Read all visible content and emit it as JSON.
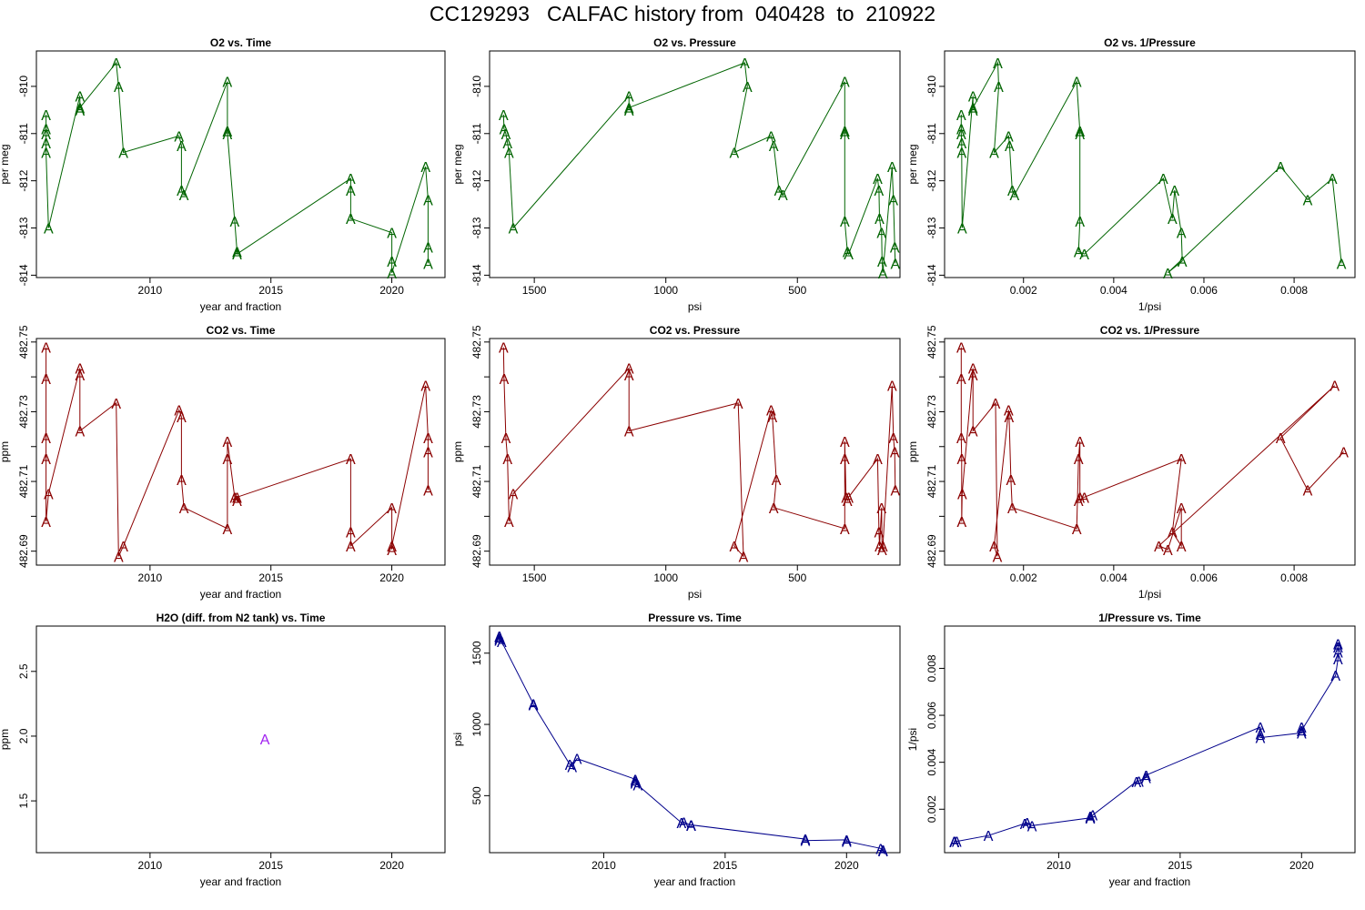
{
  "page_title": "CC129293   CALFAC history from  040428  to  210922",
  "colors": {
    "o2": "#006400",
    "co2": "#8b0000",
    "h2o": "#a020f0",
    "pressure": "#00008b",
    "frame": "#000000"
  },
  "chart_data": [
    {
      "type": "scatter",
      "title": "O2 vs. Time",
      "xlabel": "year and fraction",
      "ylabel": "per meg",
      "xlim": [
        2005.3,
        2022.2
      ],
      "ylim": [
        -814.05,
        -809.25
      ],
      "xticks": [
        "2010",
        "2015",
        "2020"
      ],
      "yticks": [
        "-814",
        "-813",
        "-812",
        "-811",
        "-810"
      ],
      "reverse_x": false,
      "color_key": "o2",
      "marker": "A",
      "connect": true,
      "x": [
        2005.7,
        2005.7,
        2005.7,
        2005.7,
        2005.7,
        2005.8,
        2007.1,
        2007.1,
        2007.1,
        2008.6,
        2008.7,
        2008.9,
        2011.2,
        2011.3,
        2011.3,
        2011.4,
        2013.2,
        2013.2,
        2013.2,
        2013.5,
        2013.6,
        2013.6,
        2018.3,
        2018.3,
        2018.3,
        2020.0,
        2020.0,
        2020.0,
        2021.4,
        2021.5,
        2021.5,
        2021.5
      ],
      "y": [
        -810.6,
        -810.9,
        -811.0,
        -811.2,
        -811.4,
        -813.0,
        -810.2,
        -810.5,
        -810.45,
        -809.5,
        -810.0,
        -811.4,
        -811.05,
        -811.25,
        -812.2,
        -812.3,
        -809.9,
        -810.95,
        -811.0,
        -812.85,
        -813.5,
        -813.55,
        -811.95,
        -812.2,
        -812.8,
        -813.1,
        -813.7,
        -813.95,
        -811.7,
        -812.4,
        -813.4,
        -813.75
      ]
    },
    {
      "type": "scatter",
      "title": "O2 vs. Pressure",
      "xlabel": "psi",
      "ylabel": "per meg",
      "xlim": [
        1670,
        110
      ],
      "ylim": [
        -814.05,
        -809.25
      ],
      "xticks": [
        "1500",
        "1000",
        "500"
      ],
      "yticks": [
        "-814",
        "-813",
        "-812",
        "-811",
        "-810"
      ],
      "reverse_x": true,
      "color_key": "o2",
      "marker": "A",
      "connect": true,
      "x": [
        1617,
        1615,
        1608,
        1602,
        1596,
        1580,
        1140,
        1140,
        1140,
        700,
        690,
        740,
        600,
        590,
        570,
        555,
        320,
        320,
        320,
        320,
        310,
        305,
        195,
        190,
        188,
        180,
        178,
        175,
        140,
        135,
        130,
        128
      ],
      "y": [
        -810.6,
        -810.9,
        -811.0,
        -811.2,
        -811.4,
        -813.0,
        -810.2,
        -810.5,
        -810.45,
        -809.5,
        -810.0,
        -811.4,
        -811.05,
        -811.25,
        -812.2,
        -812.3,
        -809.9,
        -810.95,
        -811.0,
        -812.85,
        -813.5,
        -813.55,
        -811.95,
        -812.2,
        -812.8,
        -813.1,
        -813.7,
        -813.95,
        -811.7,
        -812.4,
        -813.4,
        -813.75
      ]
    },
    {
      "type": "scatter",
      "title": "O2 vs. 1/Pressure",
      "xlabel": "1/psi",
      "ylabel": "per meg",
      "xlim": [
        0.00025,
        0.00935
      ],
      "ylim": [
        -814.05,
        -809.25
      ],
      "xticks": [
        "0.002",
        "0.004",
        "0.006",
        "0.008"
      ],
      "yticks": [
        "-814",
        "-813",
        "-812",
        "-811",
        "-810"
      ],
      "reverse_x": false,
      "color_key": "o2",
      "marker": "A",
      "connect": true,
      "x": [
        0.00062,
        0.00062,
        0.00062,
        0.00063,
        0.00063,
        0.00064,
        0.00088,
        0.00088,
        0.00088,
        0.00143,
        0.00145,
        0.00135,
        0.00167,
        0.00169,
        0.00175,
        0.0018,
        0.00318,
        0.00325,
        0.00325,
        0.00325,
        0.00322,
        0.00335,
        0.0051,
        0.0053,
        0.00535,
        0.0055,
        0.00552,
        0.0052,
        0.0077,
        0.0083,
        0.00885,
        0.00905
      ],
      "y": [
        -810.6,
        -810.9,
        -811.0,
        -811.2,
        -811.4,
        -813.0,
        -810.2,
        -810.5,
        -810.45,
        -809.5,
        -810.0,
        -811.4,
        -811.05,
        -811.25,
        -812.2,
        -812.3,
        -809.9,
        -810.95,
        -811.0,
        -812.85,
        -813.5,
        -813.55,
        -811.95,
        -812.8,
        -812.2,
        -813.1,
        -813.7,
        -813.95,
        -811.7,
        -812.4,
        -811.95,
        -813.75
      ]
    },
    {
      "type": "scatter",
      "title": "CO2 vs. Time",
      "xlabel": "year and fraction",
      "ylabel": "ppm",
      "xlim": [
        2005.3,
        2022.2
      ],
      "ylim": [
        482.686,
        482.751
      ],
      "xticks": [
        "2010",
        "2015",
        "2020"
      ],
      "yticks": [
        "482.69",
        "482.71",
        "482.73",
        "482.75"
      ],
      "minor_yticks": [
        482.7,
        482.72,
        482.74
      ],
      "reverse_x": false,
      "color_key": "co2",
      "marker": "A",
      "connect": true,
      "x": [
        2005.7,
        2005.7,
        2005.7,
        2005.7,
        2005.7,
        2005.8,
        2007.1,
        2007.1,
        2007.1,
        2008.6,
        2008.7,
        2008.9,
        2011.2,
        2011.3,
        2011.3,
        2011.4,
        2013.2,
        2013.2,
        2013.2,
        2013.5,
        2013.6,
        2013.6,
        2018.3,
        2018.3,
        2018.3,
        2020.0,
        2020.0,
        2020.0,
        2021.4,
        2021.5,
        2021.5,
        2021.5
      ],
      "y": [
        482.7485,
        482.7395,
        482.7225,
        482.7165,
        482.6985,
        482.7065,
        482.7425,
        482.7405,
        482.7245,
        482.7325,
        482.6885,
        482.6915,
        482.7305,
        482.7285,
        482.7105,
        482.7025,
        482.6965,
        482.7165,
        482.7215,
        482.7055,
        482.7045,
        482.7055,
        482.7165,
        482.6955,
        482.6915,
        482.7025,
        482.6905,
        482.6915,
        482.7375,
        482.7225,
        482.7185,
        482.7075
      ],
      "line_order": [
        0,
        1,
        2,
        3,
        4,
        5,
        6,
        7,
        8,
        9,
        10,
        11,
        12,
        13,
        14,
        15,
        16,
        17,
        18,
        19,
        20,
        21,
        22,
        23,
        24,
        25,
        26,
        27,
        28,
        29,
        30,
        31
      ]
    },
    {
      "type": "scatter",
      "title": "CO2 vs. Pressure",
      "xlabel": "psi",
      "ylabel": "ppm",
      "xlim": [
        1670,
        110
      ],
      "ylim": [
        482.686,
        482.751
      ],
      "xticks": [
        "1500",
        "1000",
        "500"
      ],
      "yticks": [
        "482.69",
        "482.71",
        "482.73",
        "482.75"
      ],
      "minor_yticks": [
        482.7,
        482.72,
        482.74
      ],
      "reverse_x": true,
      "color_key": "co2",
      "marker": "A",
      "connect": true,
      "x": [
        1617,
        1615,
        1608,
        1602,
        1596,
        1580,
        1140,
        1140,
        1140,
        725,
        705,
        740,
        600,
        595,
        580,
        590,
        320,
        320,
        320,
        315,
        310,
        305,
        195,
        190,
        188,
        180,
        178,
        175,
        140,
        135,
        130,
        128
      ],
      "y": [
        482.7485,
        482.7395,
        482.7225,
        482.7165,
        482.6985,
        482.7065,
        482.7425,
        482.7405,
        482.7245,
        482.7325,
        482.6885,
        482.6915,
        482.7305,
        482.7285,
        482.7105,
        482.7025,
        482.6965,
        482.7165,
        482.7215,
        482.7055,
        482.7045,
        482.7055,
        482.7165,
        482.6955,
        482.6915,
        482.7025,
        482.6905,
        482.6915,
        482.7375,
        482.7225,
        482.7185,
        482.7075
      ]
    },
    {
      "type": "scatter",
      "title": "CO2 vs. 1/Pressure",
      "xlabel": "1/psi",
      "ylabel": "ppm",
      "xlim": [
        0.00025,
        0.00935
      ],
      "ylim": [
        482.686,
        482.751
      ],
      "xticks": [
        "0.002",
        "0.004",
        "0.006",
        "0.008"
      ],
      "yticks": [
        "482.69",
        "482.71",
        "482.73",
        "482.75"
      ],
      "minor_yticks": [
        482.7,
        482.72,
        482.74
      ],
      "reverse_x": false,
      "color_key": "co2",
      "marker": "A",
      "connect": true,
      "x": [
        0.00062,
        0.00062,
        0.00062,
        0.00063,
        0.00063,
        0.00064,
        0.00088,
        0.00088,
        0.00088,
        0.00138,
        0.00142,
        0.00135,
        0.00167,
        0.00168,
        0.00172,
        0.00175,
        0.00318,
        0.00322,
        0.00325,
        0.00325,
        0.00322,
        0.00335,
        0.0055,
        0.0053,
        0.0055,
        0.0055,
        0.0052,
        0.005,
        0.0089,
        0.0077,
        0.0083,
        0.0091
      ],
      "y": [
        482.7485,
        482.7395,
        482.7225,
        482.7165,
        482.6985,
        482.7065,
        482.7425,
        482.7405,
        482.7245,
        482.7325,
        482.6885,
        482.6915,
        482.7305,
        482.7285,
        482.7105,
        482.7025,
        482.6965,
        482.7165,
        482.7215,
        482.7055,
        482.7045,
        482.7055,
        482.7165,
        482.6955,
        482.6915,
        482.7025,
        482.6905,
        482.6915,
        482.7375,
        482.7225,
        482.7075,
        482.7185
      ]
    },
    {
      "type": "scatter",
      "title": "H2O (diff. from N2 tank) vs. Time",
      "xlabel": "year and fraction",
      "ylabel": "ppm",
      "xlim": [
        2005.3,
        2022.2
      ],
      "ylim": [
        1.1,
        2.85
      ],
      "xticks": [
        "2010",
        "2015",
        "2020"
      ],
      "yticks": [
        "1.5",
        "2.0",
        "2.5"
      ],
      "reverse_x": false,
      "color_key": "h2o",
      "marker": "A",
      "connect": false,
      "x": [
        2014.75
      ],
      "y": [
        1.98
      ]
    },
    {
      "type": "scatter",
      "title": "Pressure vs. Time",
      "xlabel": "year and fraction",
      "ylabel": "psi",
      "xlim": [
        2005.3,
        2022.2
      ],
      "ylim": [
        100,
        1690
      ],
      "xticks": [
        "2010",
        "2015",
        "2020"
      ],
      "yticks": [
        "500",
        "1000",
        "1500"
      ],
      "reverse_x": false,
      "color_key": "pressure",
      "marker": "A",
      "connect": true,
      "x": [
        2005.7,
        2005.7,
        2005.7,
        2005.7,
        2005.8,
        2007.1,
        2007.1,
        2008.6,
        2008.7,
        2008.9,
        2011.3,
        2011.3,
        2011.3,
        2011.4,
        2013.2,
        2013.3,
        2013.6,
        2013.6,
        2018.3,
        2018.3,
        2020.0,
        2020.0,
        2021.4,
        2021.5,
        2021.5
      ],
      "y": [
        1620,
        1612,
        1600,
        1590,
        1580,
        1145,
        1138,
        720,
        705,
        760,
        615,
        600,
        590,
        575,
        310,
        315,
        290,
        295,
        195,
        185,
        190,
        180,
        130,
        120,
        112
      ]
    },
    {
      "type": "scatter",
      "title": "1/Pressure vs. Time",
      "xlabel": "year and fraction",
      "ylabel": "1/psi",
      "xlim": [
        2005.3,
        2022.2
      ],
      "ylim": [
        0.00015,
        0.0098
      ],
      "xticks": [
        "2010",
        "2015",
        "2020"
      ],
      "yticks": [
        "0.002",
        "0.004",
        "0.006",
        "0.008"
      ],
      "reverse_x": false,
      "color_key": "pressure",
      "marker": "A",
      "connect": true,
      "x": [
        2005.7,
        2005.7,
        2005.7,
        2005.8,
        2007.1,
        2008.6,
        2008.7,
        2008.9,
        2011.3,
        2011.3,
        2011.3,
        2011.4,
        2013.2,
        2013.3,
        2013.6,
        2013.6,
        2018.3,
        2018.3,
        2018.3,
        2020.0,
        2020.0,
        2020.0,
        2021.4,
        2021.5,
        2021.5,
        2021.5,
        2021.5
      ],
      "y": [
        0.00062,
        0.00063,
        0.00064,
        0.00063,
        0.00088,
        0.00139,
        0.00142,
        0.0013,
        0.00163,
        0.00167,
        0.0017,
        0.00175,
        0.00318,
        0.0032,
        0.00335,
        0.00345,
        0.0055,
        0.0052,
        0.00505,
        0.00525,
        0.0055,
        0.00535,
        0.0077,
        0.0084,
        0.0087,
        0.0089,
        0.00905
      ]
    }
  ]
}
